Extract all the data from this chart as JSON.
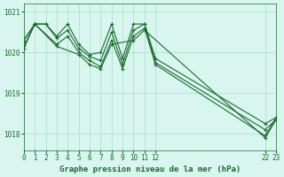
{
  "background_color": "#d8f5f0",
  "plot_bg_color": "#d8f5f0",
  "grid_color": "#aaddcc",
  "line_color": "#1a6b2a",
  "title": "Graphe pression niveau de la mer (hPa)",
  "xlim": [
    0,
    23
  ],
  "ylim": [
    1017.6,
    1021.2
  ],
  "yticks": [
    1018,
    1019,
    1020,
    1021
  ],
  "xticks": [
    0,
    1,
    2,
    3,
    4,
    5,
    6,
    7,
    8,
    9,
    10,
    11,
    12,
    22,
    23
  ],
  "xtick_labels": [
    "0",
    "1",
    "2",
    "3",
    "4",
    "5",
    "6",
    "7",
    "8",
    "9",
    "10",
    "11",
    "12",
    "22",
    "23"
  ],
  "series": [
    {
      "x": [
        0,
        1,
        2,
        3,
        4,
        5,
        6,
        7,
        8,
        9,
        10,
        11,
        12,
        22,
        23
      ],
      "y": [
        1020.3,
        1020.7,
        1020.7,
        1020.4,
        1020.7,
        1020.2,
        1019.95,
        1020.0,
        1020.7,
        1019.85,
        1020.7,
        1020.7,
        1019.85,
        1018.25,
        1018.4
      ]
    },
    {
      "x": [
        0,
        1,
        2,
        3,
        4,
        5,
        6,
        7,
        8,
        9,
        10,
        11,
        12,
        22,
        23
      ],
      "y": [
        1020.3,
        1020.7,
        1020.7,
        1020.35,
        1020.55,
        1020.1,
        1019.9,
        1019.8,
        1020.5,
        1019.7,
        1020.55,
        1020.7,
        1019.75,
        1018.1,
        1018.35
      ]
    },
    {
      "x": [
        0,
        1,
        3,
        4,
        5,
        6,
        7,
        8,
        9,
        10,
        11,
        12,
        22,
        23
      ],
      "y": [
        1020.15,
        1020.7,
        1020.2,
        1020.4,
        1020.0,
        1019.8,
        1019.65,
        1020.3,
        1019.6,
        1020.4,
        1020.6,
        1019.7,
        1017.95,
        1018.4
      ]
    },
    {
      "x": [
        0,
        1,
        3,
        5,
        6,
        7,
        8,
        10,
        11,
        22,
        23
      ],
      "y": [
        1020.1,
        1020.7,
        1020.15,
        1019.95,
        1019.7,
        1019.6,
        1020.2,
        1020.3,
        1020.55,
        1017.9,
        1018.35
      ]
    }
  ]
}
